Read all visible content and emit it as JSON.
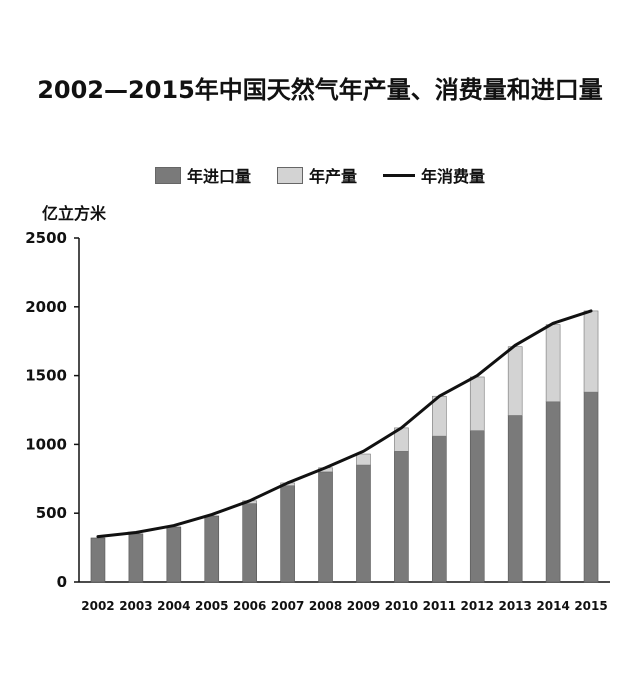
{
  "title": "2002—2015年中国天然气年产量、消费量和进口量",
  "unit_label": "亿立方米",
  "legend": [
    {
      "label": "年进口量",
      "kind": "bar",
      "color": "#7a7a7a"
    },
    {
      "label": "年产量",
      "kind": "bar",
      "color": "#d3d3d3"
    },
    {
      "label": "年消费量",
      "kind": "line",
      "color": "#111111"
    }
  ],
  "chart_data": {
    "type": "bar",
    "stacked": true,
    "categories": [
      "2002",
      "2003",
      "2004",
      "2005",
      "2006",
      "2007",
      "2008",
      "2009",
      "2010",
      "2011",
      "2012",
      "2013",
      "2014",
      "2015"
    ],
    "series": [
      {
        "name": "年进口量",
        "type": "bar",
        "color": "#7a7a7a",
        "values": [
          320,
          350,
          400,
          480,
          570,
          700,
          800,
          850,
          950,
          1060,
          1100,
          1210,
          1310,
          1380
        ]
      },
      {
        "name": "年产量",
        "type": "bar",
        "color": "#d3d3d3",
        "values": [
          0,
          0,
          0,
          0,
          20,
          20,
          30,
          80,
          170,
          290,
          390,
          500,
          560,
          590
        ]
      },
      {
        "name": "年消费量",
        "type": "line",
        "color": "#111111",
        "values": [
          330,
          360,
          410,
          490,
          590,
          720,
          830,
          950,
          1120,
          1350,
          1500,
          1720,
          1880,
          1970
        ]
      }
    ],
    "ylim": [
      0,
      2500
    ],
    "yticks": [
      "2500",
      "2000",
      "1500",
      "1000",
      "500",
      "0"
    ],
    "ylabel": "亿立方米",
    "legend_position": "top"
  }
}
